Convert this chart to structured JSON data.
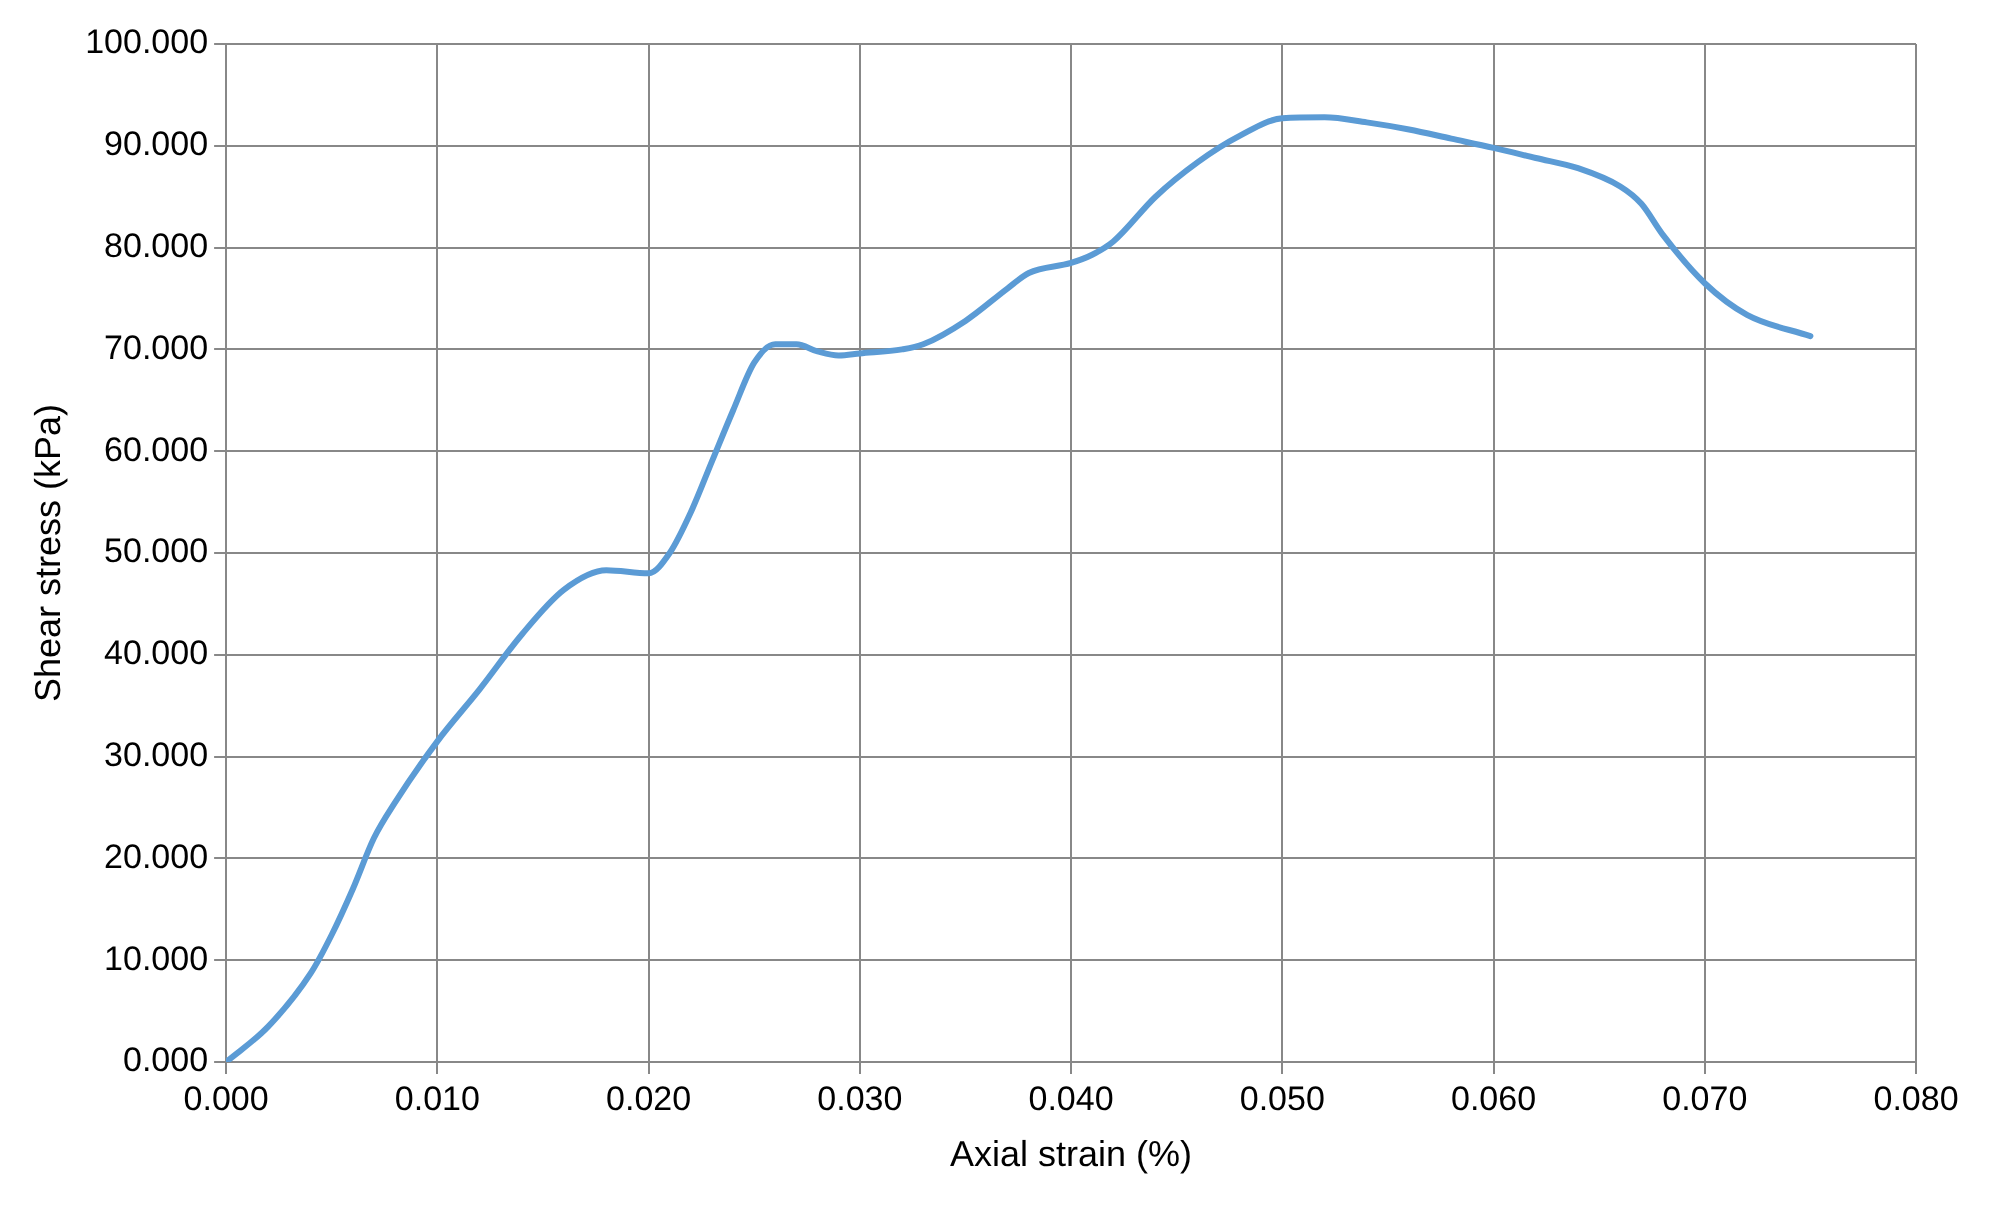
{
  "chart_data": {
    "type": "line",
    "xlabel": "Axial strain (%)",
    "ylabel": "Shear stress (kPa)",
    "x": [
      0,
      0.002,
      0.004,
      0.005,
      0.006,
      0.007,
      0.008,
      0.01,
      0.012,
      0.014,
      0.016,
      0.018,
      0.02,
      0.021,
      0.022,
      0.023,
      0.024,
      0.025,
      0.026,
      0.027,
      0.028,
      0.029,
      0.03,
      0.032,
      0.033,
      0.035,
      0.037,
      0.038,
      0.04,
      0.041,
      0.042,
      0.044,
      0.046,
      0.048,
      0.05,
      0.052,
      0.054,
      0.056,
      0.058,
      0.06,
      0.062,
      0.064,
      0.066,
      0.067,
      0.068,
      0.07,
      0.072,
      0.075
    ],
    "series": [
      {
        "color": "#5b9bd5",
        "values": [
          0,
          3.5,
          8.7,
          12.5,
          17,
          22,
          25.5,
          31.5,
          36.6,
          42,
          46.4,
          48.3,
          48,
          50,
          54,
          59,
          64,
          68.7,
          70.5,
          70.5,
          69.8,
          69.4,
          69.6,
          70,
          70.5,
          72.8,
          76,
          77.5,
          78.5,
          79.3,
          80.6,
          85,
          88.4,
          91,
          92.7,
          92.8,
          92.3,
          91.6,
          90.7,
          89.8,
          88.8,
          87.8,
          86,
          84.3,
          81.3,
          76.5,
          73.4,
          71.3
        ]
      }
    ],
    "xlim": [
      0,
      0.08
    ],
    "xticks": [
      {
        "value": 0,
        "label": "0.000"
      },
      {
        "value": 0.01,
        "label": "0.010"
      },
      {
        "value": 0.02,
        "label": "0.020"
      },
      {
        "value": 0.03,
        "label": "0.030"
      },
      {
        "value": 0.04,
        "label": "0.040"
      },
      {
        "value": 0.05,
        "label": "0.050"
      },
      {
        "value": 0.06,
        "label": "0.060"
      },
      {
        "value": 0.07,
        "label": "0.070"
      },
      {
        "value": 0.08,
        "label": "0.080"
      }
    ],
    "ylim": [
      0,
      100
    ],
    "yticks": [
      {
        "value": 0,
        "label": "0.000"
      },
      {
        "value": 10,
        "label": "10.000"
      },
      {
        "value": 20,
        "label": "20.000"
      },
      {
        "value": 30,
        "label": "30.000"
      },
      {
        "value": 40,
        "label": "40.000"
      },
      {
        "value": 50,
        "label": "50.000"
      },
      {
        "value": 60,
        "label": "60.000"
      },
      {
        "value": 70,
        "label": "70.000"
      },
      {
        "value": 80,
        "label": "80.000"
      },
      {
        "value": 90,
        "label": "90.000"
      },
      {
        "value": 100,
        "label": "100.000"
      }
    ],
    "grid": true,
    "legend": false,
    "marker": "none",
    "line_style": "solid"
  }
}
